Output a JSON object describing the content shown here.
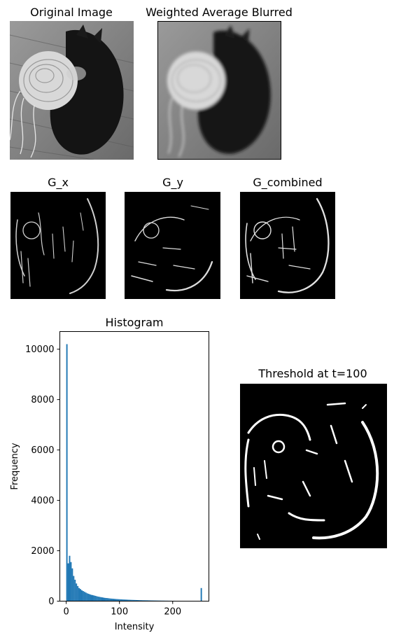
{
  "panels": {
    "original": {
      "title": "Original Image"
    },
    "blurred": {
      "title": "Weighted Average Blurred"
    },
    "gx": {
      "title": "G_x"
    },
    "gy": {
      "title": "G_y"
    },
    "gcombined": {
      "title": "G_combined"
    },
    "threshold": {
      "title": "Threshold at t=100"
    }
  },
  "chart_data": {
    "type": "bar",
    "title": "Histogram",
    "xlabel": "Intensity",
    "ylabel": "Frequency",
    "xlim": [
      -12,
      268
    ],
    "ylim": [
      0,
      10700
    ],
    "x_ticks": [
      0,
      100,
      200
    ],
    "y_ticks": [
      0,
      2000,
      4000,
      6000,
      8000,
      10000
    ],
    "bar_color": "#1f77b4",
    "bin_width": 2.55,
    "bin_starts": [
      0,
      2.55,
      5.1,
      7.65,
      10.2,
      12.75,
      15.3,
      17.85,
      20.4,
      22.95,
      25.5,
      28.05,
      30.6,
      33.15,
      35.7,
      38.25,
      40.8,
      43.35,
      45.9,
      48.45,
      51,
      53.55,
      56.1,
      58.65,
      61.2,
      63.75,
      66.3,
      68.85,
      71.4,
      73.95,
      76.5,
      79.05,
      81.6,
      84.15,
      86.7,
      89.25,
      91.8,
      94.35,
      96.9,
      99.45,
      102,
      104.55,
      107.1,
      109.65,
      112.2,
      114.75,
      117.3,
      119.85,
      122.4,
      124.95,
      127.5,
      130.05,
      132.6,
      135.15,
      137.7,
      140.25,
      142.8,
      145.35,
      147.9,
      150.45,
      153,
      155.55,
      158.1,
      160.65,
      163.2,
      165.75,
      168.3,
      170.85,
      173.4,
      175.95,
      178.5,
      181.05,
      183.6,
      186.15,
      188.7,
      191.25,
      193.8,
      196.35,
      198.9,
      201.45,
      204,
      206.55,
      209.1,
      211.65,
      214.2,
      216.75,
      219.3,
      221.85,
      224.4,
      226.95,
      229.5,
      232.05,
      234.6,
      237.15,
      239.7,
      242.25,
      244.8,
      247.35,
      249.9,
      252.45
    ],
    "values": [
      10200,
      1500,
      1800,
      1550,
      1300,
      1000,
      850,
      700,
      600,
      520,
      480,
      430,
      400,
      370,
      340,
      310,
      290,
      270,
      250,
      240,
      225,
      210,
      195,
      180,
      170,
      160,
      150,
      140,
      130,
      125,
      120,
      112,
      105,
      100,
      95,
      90,
      85,
      82,
      78,
      75,
      72,
      68,
      65,
      62,
      60,
      57,
      55,
      52,
      50,
      48,
      46,
      44,
      42,
      40,
      38,
      37,
      35,
      34,
      33,
      32,
      30,
      29,
      28,
      27,
      26,
      25,
      24,
      23,
      22,
      21,
      20,
      20,
      19,
      18,
      18,
      17,
      16,
      16,
      15,
      15,
      14,
      14,
      13,
      13,
      12,
      12,
      11,
      11,
      10,
      10,
      10,
      9,
      9,
      9,
      8,
      8,
      8,
      8,
      7,
      520
    ]
  }
}
